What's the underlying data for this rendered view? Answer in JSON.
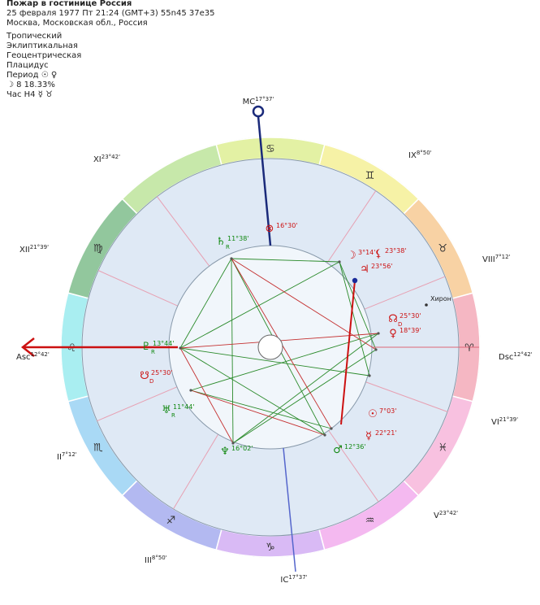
{
  "header": {
    "title": "Пожар в гостинице Россия",
    "datetime": "25 февраля 1977  Пт  21:24 (GMT+3) 55n45  37e35",
    "place": "Москва, Московская обл., Россия",
    "settings": [
      "Тропический",
      "Эклиптикальная",
      "Геоцентрическая",
      "Плацидус"
    ],
    "period": "Период ☉ ♀",
    "moon": "☽  8 18.33%",
    "hour": "Час H4 ☿ ♉"
  },
  "angles": [
    {
      "name": "MC",
      "degree": "17°37'"
    },
    {
      "name": "Asc",
      "degree": "12°42'"
    },
    {
      "name": "Dsc",
      "degree": "12°42'"
    },
    {
      "name": "IC",
      "degree": "17°37'"
    }
  ],
  "houses": [
    {
      "name": "XI",
      "degree": "23°42'"
    },
    {
      "name": "IX",
      "degree": "8°50'"
    },
    {
      "name": "XII",
      "degree": "21°39'"
    },
    {
      "name": "VIII",
      "degree": "7°12'"
    },
    {
      "name": "II",
      "degree": "7°12'"
    },
    {
      "name": "VI",
      "degree": "21°39'"
    },
    {
      "name": "III",
      "degree": "8°50'"
    },
    {
      "name": "V",
      "degree": "23°42'"
    }
  ],
  "signs": [
    "♋",
    "♊",
    "♉",
    "♈",
    "♓",
    "♒",
    "♑",
    "♐",
    "♏",
    "♌",
    "♍"
  ],
  "planets": [
    {
      "glyph": "⊗",
      "degree": "16°30'"
    },
    {
      "glyph": "♄",
      "degree": "11°38'",
      "motion": "R"
    },
    {
      "glyph": "☽",
      "degree": "3°14'"
    },
    {
      "glyph": "⚸",
      "degree": "23°38'"
    },
    {
      "glyph": "♃",
      "degree": "23°56'"
    },
    {
      "glyph": "☊",
      "degree": "25°30'",
      "motion": "D"
    },
    {
      "glyph": "♀",
      "degree": "18°39'"
    },
    {
      "glyph": "♇",
      "degree": "13°44'",
      "motion": "R"
    },
    {
      "glyph": "☋",
      "degree": "25°30'",
      "motion": "D"
    },
    {
      "glyph": "♅",
      "degree": "11°44'",
      "motion": "R"
    },
    {
      "glyph": "☉",
      "degree": "7°03'"
    },
    {
      "glyph": "☿",
      "degree": "22°21'"
    },
    {
      "glyph": "♂",
      "degree": "12°36'"
    },
    {
      "glyph": "♆",
      "degree": "16°02'"
    }
  ],
  "chiron": "Хирон"
}
